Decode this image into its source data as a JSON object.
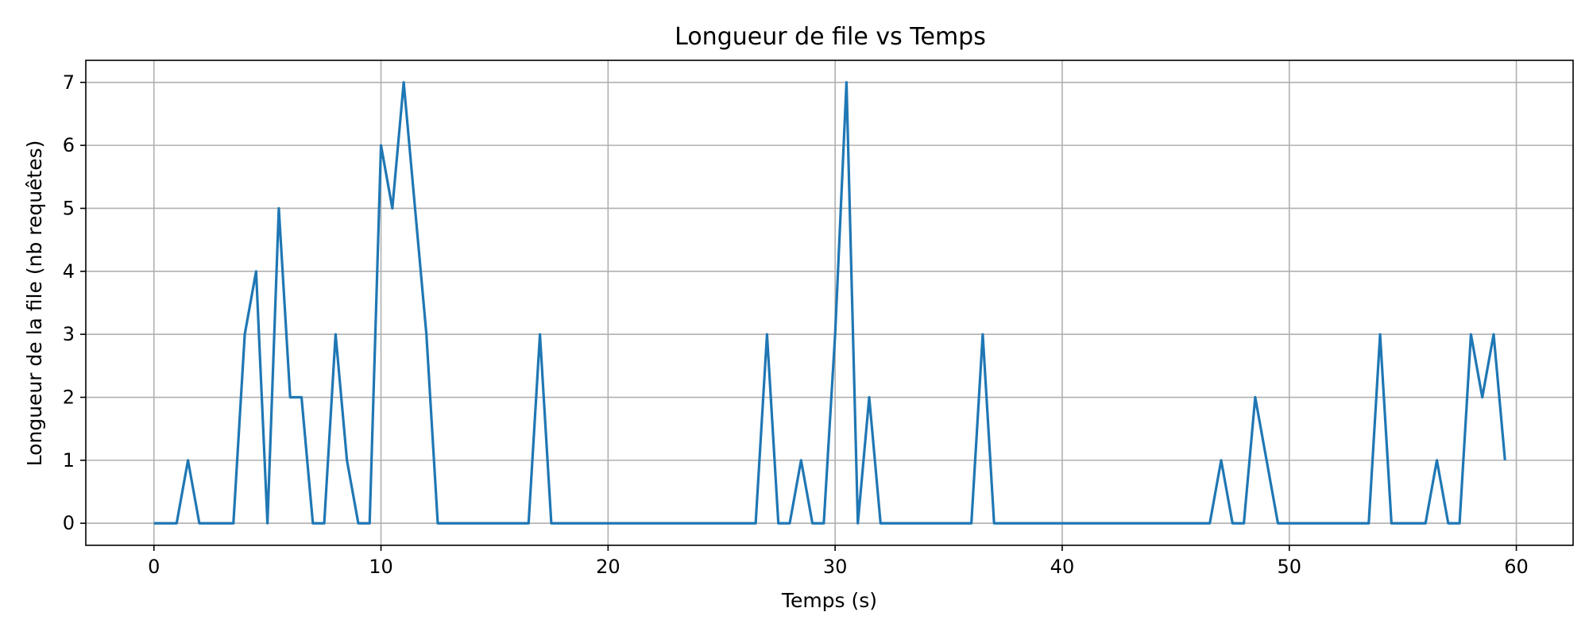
{
  "chart_data": {
    "type": "line",
    "title": "Longueur de file vs Temps",
    "xlabel": "Temps (s)",
    "ylabel": "Longueur de la file (nb requêtes)",
    "xlim": [
      -3,
      62.5
    ],
    "ylim": [
      -0.35,
      7.35
    ],
    "xticks": [
      0,
      10,
      20,
      30,
      40,
      50,
      60
    ],
    "yticks": [
      0,
      1,
      2,
      3,
      4,
      5,
      6,
      7
    ],
    "grid": true,
    "legend": "none",
    "colors": {
      "series": "#1f77b4"
    },
    "series": [
      {
        "x": [
          0,
          0.5,
          1,
          1.5,
          2,
          2.5,
          3,
          3.5,
          4,
          4.5,
          5,
          5.5,
          6,
          6.5,
          7,
          7.5,
          8,
          8.5,
          9,
          9.5,
          10,
          10.5,
          11,
          11.5,
          12,
          12.5,
          13,
          13.5,
          14,
          14.5,
          15,
          15.5,
          16,
          16.5,
          17,
          17.5,
          18,
          18.5,
          19,
          19.5,
          20,
          20.5,
          21,
          21.5,
          22,
          22.5,
          23,
          23.5,
          24,
          24.5,
          25,
          25.5,
          26,
          26.5,
          27,
          27.5,
          28,
          28.5,
          29,
          29.5,
          30,
          30.5,
          31,
          31.5,
          32,
          32.5,
          33,
          33.5,
          34,
          34.5,
          35,
          35.5,
          36,
          36.5,
          37,
          37.5,
          38,
          38.5,
          39,
          39.5,
          40,
          40.5,
          41,
          41.5,
          42,
          42.5,
          43,
          43.5,
          44,
          44.5,
          45,
          45.5,
          46,
          46.5,
          47,
          47.5,
          48,
          48.5,
          49,
          49.5,
          50,
          50.5,
          51,
          51.5,
          52,
          52.5,
          53,
          53.5,
          54,
          54.5,
          55,
          55.5,
          56,
          56.5,
          57,
          57.5,
          58,
          58.5,
          59,
          59.5
        ],
        "y": [
          0,
          0,
          0,
          1,
          0,
          0,
          0,
          0,
          3,
          4,
          0,
          5,
          2,
          2,
          0,
          0,
          3,
          1,
          0,
          0,
          6,
          5,
          7,
          5,
          3,
          0,
          0,
          0,
          0,
          0,
          0,
          0,
          0,
          0,
          3,
          0,
          0,
          0,
          0,
          0,
          0,
          0,
          0,
          0,
          0,
          0,
          0,
          0,
          0,
          0,
          0,
          0,
          0,
          0,
          3,
          0,
          0,
          1,
          0,
          0,
          3,
          7,
          0,
          2,
          0,
          0,
          0,
          0,
          0,
          0,
          0,
          0,
          0,
          3,
          0,
          0,
          0,
          0,
          0,
          0,
          0,
          0,
          0,
          0,
          0,
          0,
          0,
          0,
          0,
          0,
          0,
          0,
          0,
          0,
          1,
          0,
          0,
          2,
          1,
          0,
          0,
          0,
          0,
          0,
          0,
          0,
          0,
          0,
          3,
          0,
          0,
          0,
          0,
          1,
          0,
          0,
          3,
          2,
          3,
          1
        ]
      }
    ]
  }
}
